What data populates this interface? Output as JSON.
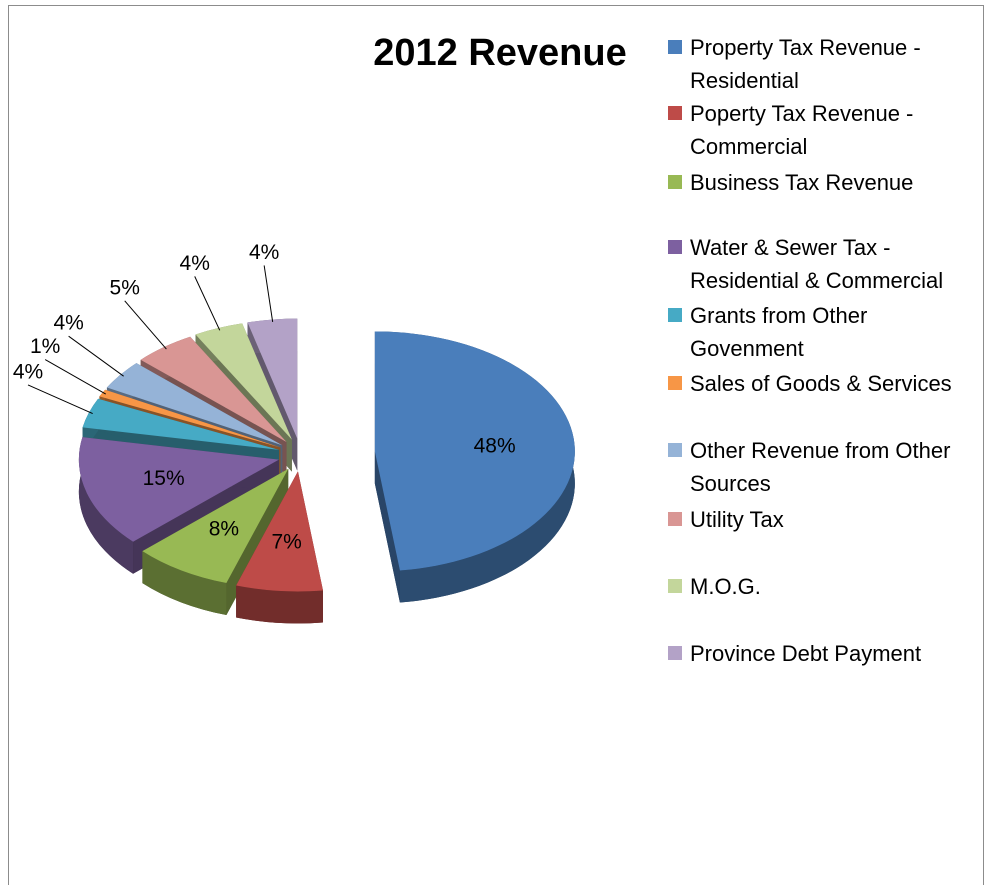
{
  "chart_data": {
    "type": "pie",
    "title": "2012 Revenue",
    "categories": [
      "Property Tax Revenue - Residential",
      "Poperty Tax Revenue - Commercial",
      "Business Tax Revenue",
      "Water & Sewer Tax  - Residential & Commercial",
      "Grants from Other Govenment",
      "Sales of Goods & Services",
      "Other Revenue from Other Sources",
      "Utility Tax",
      "M.O.G.",
      "Province Debt Payment"
    ],
    "values": [
      48,
      7,
      8,
      15,
      4,
      1,
      4,
      5,
      4,
      4
    ],
    "value_labels": [
      "48%",
      "7%",
      "8%",
      "15%",
      "4%",
      "1%",
      "4%",
      "5%",
      "4%",
      "4%"
    ],
    "colors": [
      "#4a7ebb",
      "#be4b48",
      "#98b954",
      "#7d60a0",
      "#46aac5",
      "#f79646",
      "#95b3d7",
      "#d99694",
      "#c3d69b",
      "#b3a2c7"
    ],
    "legend": "right"
  }
}
